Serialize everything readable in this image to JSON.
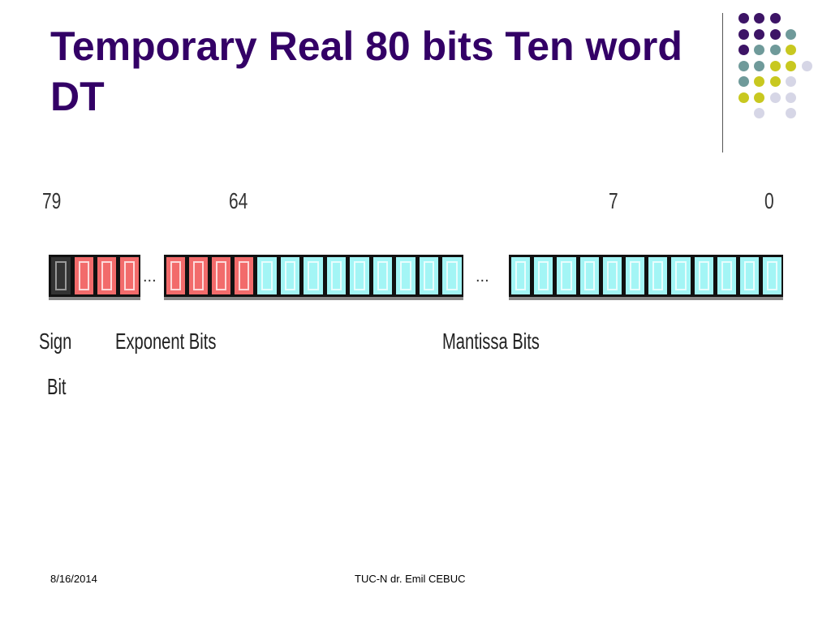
{
  "slide": {
    "title": "Temporary Real 80 bits Ten word DT",
    "bit_positions": [
      "79",
      "64",
      "7",
      "0"
    ],
    "ellipsis": "...",
    "labels": {
      "sign_line1": "Sign",
      "sign_line2": "Bit",
      "exponent": "Exponent Bits",
      "mantissa": "Mantissa Bits"
    },
    "colors": {
      "title": "#330066",
      "sign_bit": "#333333",
      "exponent_bits": "#f26b6b",
      "mantissa_bits": "#a3f5f5"
    }
  },
  "footer": {
    "date": "8/16/2014",
    "author": "TUC-N dr. Emil CEBUC"
  }
}
